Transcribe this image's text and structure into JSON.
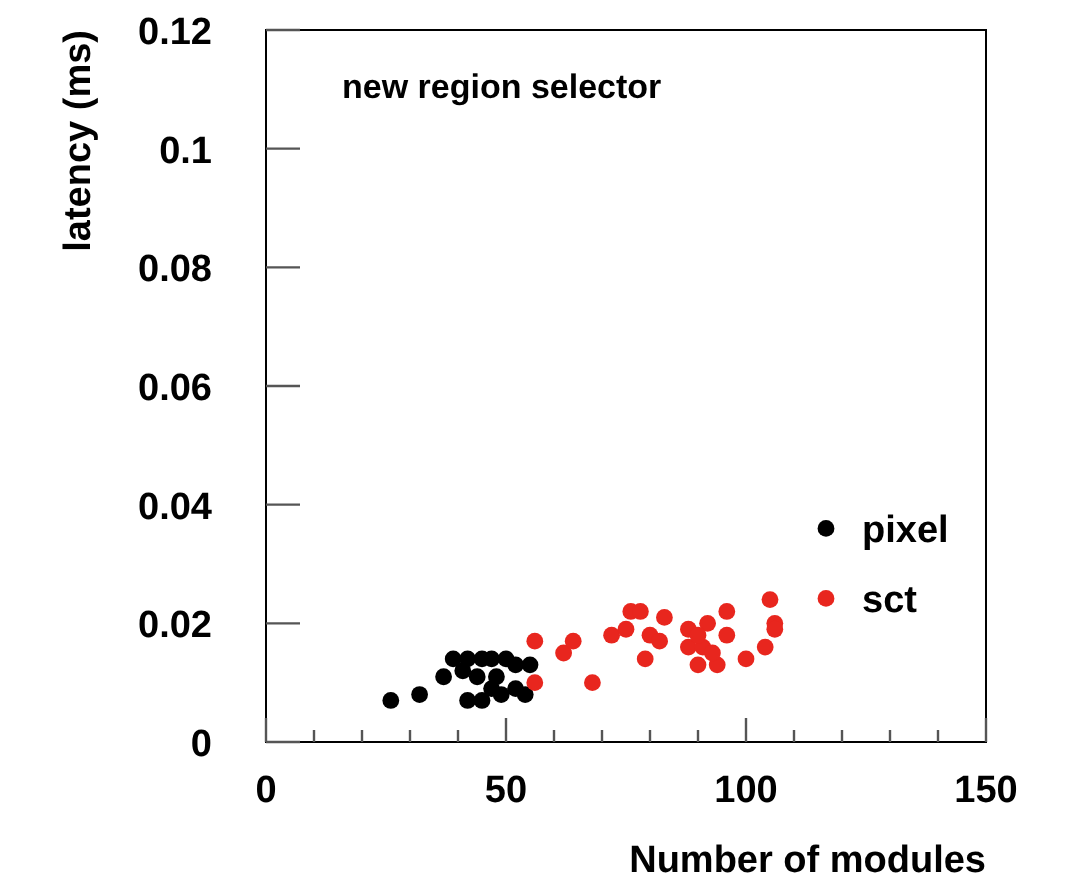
{
  "chart_data": {
    "type": "scatter",
    "title": "new region selector",
    "xlabel": "Number of modules",
    "ylabel": "latency (ms)",
    "xlim": [
      0,
      150
    ],
    "ylim": [
      0,
      0.12
    ],
    "xticks": [
      0,
      {
        "value": 10,
        "label": null
      },
      {
        "value": 20,
        "label": null
      },
      {
        "value": 30,
        "label": null
      },
      {
        "value": 40,
        "label": null
      },
      50,
      {
        "value": 60,
        "label": null
      },
      {
        "value": 70,
        "label": null
      },
      {
        "value": 80,
        "label": null
      },
      {
        "value": 90,
        "label": null
      },
      100,
      {
        "value": 110,
        "label": null
      },
      {
        "value": 120,
        "label": null
      },
      {
        "value": 130,
        "label": null
      },
      {
        "value": 140,
        "label": null
      },
      150
    ],
    "yticks": [
      0,
      0.02,
      0.04,
      0.06,
      0.08,
      0.1,
      0.12
    ],
    "grid": false,
    "legend": "right",
    "marker": "circle",
    "series": [
      {
        "name": "pixel",
        "color": "#000000",
        "x": [
          26,
          32,
          37,
          39,
          42,
          41,
          45,
          45,
          47,
          48,
          49,
          50,
          52,
          52,
          54,
          55,
          44,
          47,
          42
        ],
        "values": [
          0.007,
          0.008,
          0.011,
          0.014,
          0.007,
          0.012,
          0.007,
          0.014,
          0.014,
          0.011,
          0.008,
          0.014,
          0.013,
          0.009,
          0.008,
          0.013,
          0.011,
          0.009,
          0.014
        ]
      },
      {
        "name": "sct",
        "color": "#e8261e",
        "x": [
          56,
          56,
          62,
          64,
          68,
          72,
          76,
          78,
          75,
          79,
          80,
          83,
          82,
          88,
          88,
          90,
          92,
          91,
          94,
          96,
          96,
          100,
          104,
          105,
          106,
          106,
          90,
          93
        ],
        "values": [
          0.017,
          0.01,
          0.015,
          0.017,
          0.01,
          0.018,
          0.022,
          0.022,
          0.019,
          0.014,
          0.018,
          0.021,
          0.017,
          0.016,
          0.019,
          0.013,
          0.02,
          0.016,
          0.013,
          0.022,
          0.018,
          0.014,
          0.016,
          0.024,
          0.02,
          0.019,
          0.018,
          0.015
        ]
      }
    ]
  }
}
